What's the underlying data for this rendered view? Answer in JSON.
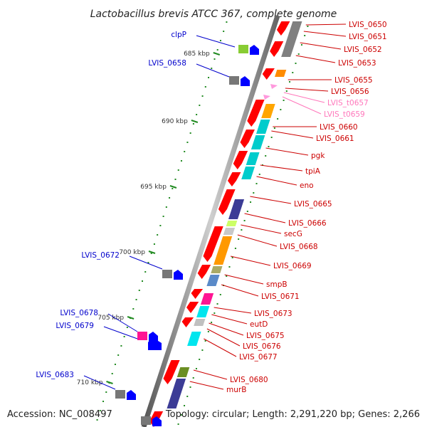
{
  "title": "Lactobacillus brevis ATCC 367, complete genome",
  "footer": {
    "accession": "Accession: NC_008497",
    "summary": "Topology: circular; Length: 2,291,220 bp; Genes: 2,266"
  },
  "kbp_marks": [
    "685 kbp",
    "690 kbp",
    "695 kbp",
    "700 kbp",
    "705 kbp",
    "710 kbp"
  ],
  "left_labels": [
    "clpP",
    "LVIS_0658",
    "LVIS_0672",
    "LVIS_0678",
    "LVIS_0679",
    "LVIS_0683"
  ],
  "right_labels": [
    "LVIS_0650",
    "LVIS_0651",
    "LVIS_0652",
    "LVIS_0653",
    "LVIS_0655",
    "LVIS_0656",
    "LVIS_t0657",
    "LVIS_t0659",
    "LVIS_0660",
    "LVIS_0661",
    "pgk",
    "tpiA",
    "eno",
    "LVIS_0665",
    "LVIS_0666",
    "secG",
    "LVIS_0668",
    "LVIS_0669",
    "smpB",
    "LVIS_0671",
    "LVIS_0673",
    "eutD",
    "LVIS_0675",
    "LVIS_0676",
    "LVIS_0677",
    "LVIS_0680",
    "murB"
  ],
  "colors": {
    "forward_gene": "#ff0000",
    "reverse_gene": "#0000ff",
    "trna": "#ff99dd",
    "left_label": "#0000cc",
    "right_label": "#cc0000",
    "trna_label": "#ff77bb",
    "backbone": "#888888",
    "tick": "#228b22"
  }
}
